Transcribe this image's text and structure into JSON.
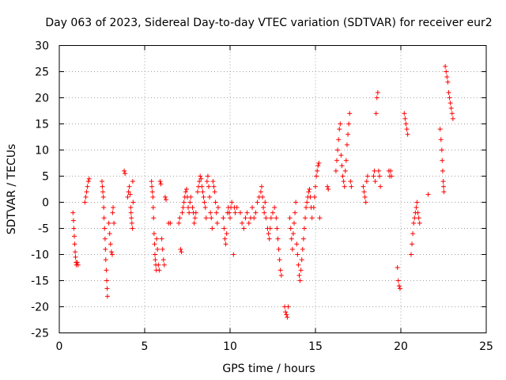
{
  "chart_data": {
    "type": "scatter",
    "title": "Day 063 of 2023, Sidereal Day-to-day VTEC variation (SDTVAR) for receiver eur2",
    "xlabel": "GPS time / hours",
    "ylabel": "SDTVAR / TECUs",
    "xlim": [
      0,
      25
    ],
    "ylim": [
      -25,
      30
    ],
    "x_ticks": [
      0,
      5,
      10,
      15,
      20,
      25
    ],
    "y_ticks": [
      -25,
      -20,
      -15,
      -10,
      -5,
      0,
      5,
      10,
      15,
      20,
      25,
      30
    ],
    "x_tick_labels": [
      "0",
      "5",
      "10",
      "15",
      "20",
      "25"
    ],
    "y_tick_labels": [
      "-25",
      "-20",
      "-15",
      "-10",
      "-5",
      "0",
      "5",
      "10",
      "15",
      "20",
      "25",
      "30"
    ],
    "grid": true,
    "marker": "+",
    "series_color": "#ff0000",
    "series": [
      {
        "name": "eur2",
        "points": [
          [
            0.8,
            -2
          ],
          [
            0.83,
            -3.5
          ],
          [
            0.85,
            -5
          ],
          [
            0.88,
            -6.5
          ],
          [
            0.9,
            -8
          ],
          [
            0.93,
            -9.5
          ],
          [
            0.95,
            -10.5
          ],
          [
            0.98,
            -11.5
          ],
          [
            1.0,
            -12
          ],
          [
            1.05,
            -11.5
          ],
          [
            1.1,
            -12
          ],
          [
            1.5,
            0
          ],
          [
            1.55,
            1
          ],
          [
            1.6,
            2
          ],
          [
            1.65,
            3
          ],
          [
            1.7,
            4
          ],
          [
            1.75,
            4.5
          ],
          [
            2.5,
            4
          ],
          [
            2.52,
            3
          ],
          [
            2.55,
            2
          ],
          [
            2.58,
            1
          ],
          [
            2.6,
            -1
          ],
          [
            2.62,
            -3
          ],
          [
            2.65,
            -5
          ],
          [
            2.68,
            -7
          ],
          [
            2.7,
            -9
          ],
          [
            2.72,
            -11
          ],
          [
            2.75,
            -13
          ],
          [
            2.78,
            -15
          ],
          [
            2.8,
            -16.5
          ],
          [
            2.82,
            -18
          ],
          [
            2.9,
            -4
          ],
          [
            2.95,
            -6
          ],
          [
            3.0,
            -8
          ],
          [
            3.05,
            -9.5
          ],
          [
            3.1,
            -10
          ],
          [
            3.12,
            -2
          ],
          [
            3.15,
            -1
          ],
          [
            3.2,
            -4
          ],
          [
            3.8,
            6
          ],
          [
            3.85,
            5.5
          ],
          [
            4.0,
            1
          ],
          [
            4.05,
            2
          ],
          [
            4.1,
            3
          ],
          [
            4.15,
            1.5
          ],
          [
            4.18,
            -1
          ],
          [
            4.2,
            -2
          ],
          [
            4.22,
            -3
          ],
          [
            4.25,
            -4
          ],
          [
            4.28,
            -5
          ],
          [
            4.3,
            4
          ],
          [
            4.32,
            0
          ],
          [
            5.4,
            4
          ],
          [
            5.42,
            3
          ],
          [
            5.45,
            2
          ],
          [
            5.48,
            1
          ],
          [
            5.5,
            -1
          ],
          [
            5.52,
            -3
          ],
          [
            5.55,
            -6
          ],
          [
            5.58,
            -8
          ],
          [
            5.6,
            -10
          ],
          [
            5.62,
            -11
          ],
          [
            5.65,
            -12
          ],
          [
            5.68,
            -13
          ],
          [
            5.7,
            -7
          ],
          [
            5.75,
            -9
          ],
          [
            5.8,
            -12
          ],
          [
            5.85,
            -13
          ],
          [
            5.9,
            4
          ],
          [
            5.95,
            3.5
          ],
          [
            6.0,
            -7
          ],
          [
            6.05,
            -9
          ],
          [
            6.1,
            -11
          ],
          [
            6.15,
            -12
          ],
          [
            6.2,
            1
          ],
          [
            6.25,
            0.5
          ],
          [
            6.4,
            -4
          ],
          [
            6.5,
            -4
          ],
          [
            7.0,
            -4
          ],
          [
            7.05,
            -3
          ],
          [
            7.1,
            -9
          ],
          [
            7.15,
            -9.5
          ],
          [
            7.2,
            -2
          ],
          [
            7.25,
            -1
          ],
          [
            7.3,
            0
          ],
          [
            7.35,
            1
          ],
          [
            7.4,
            2
          ],
          [
            7.45,
            2.5
          ],
          [
            7.5,
            1
          ],
          [
            7.55,
            -1
          ],
          [
            7.6,
            -2
          ],
          [
            7.65,
            0
          ],
          [
            7.7,
            1
          ],
          [
            7.8,
            -1
          ],
          [
            7.85,
            -2
          ],
          [
            7.9,
            -4
          ],
          [
            7.95,
            -3
          ],
          [
            8.0,
            -2
          ],
          [
            8.1,
            2
          ],
          [
            8.15,
            3
          ],
          [
            8.2,
            4
          ],
          [
            8.25,
            5
          ],
          [
            8.3,
            4.5
          ],
          [
            8.35,
            3
          ],
          [
            8.4,
            2
          ],
          [
            8.45,
            1
          ],
          [
            8.5,
            0
          ],
          [
            8.55,
            -1
          ],
          [
            8.6,
            -3
          ],
          [
            8.65,
            4
          ],
          [
            8.7,
            5
          ],
          [
            8.75,
            3
          ],
          [
            8.8,
            1
          ],
          [
            8.85,
            -2
          ],
          [
            8.9,
            -3
          ],
          [
            8.95,
            -5
          ],
          [
            9.0,
            4
          ],
          [
            9.05,
            3
          ],
          [
            9.1,
            2
          ],
          [
            9.15,
            0
          ],
          [
            9.2,
            -2
          ],
          [
            9.25,
            -4
          ],
          [
            9.3,
            -1
          ],
          [
            9.6,
            -3
          ],
          [
            9.65,
            -5
          ],
          [
            9.7,
            -7
          ],
          [
            9.75,
            -8
          ],
          [
            9.8,
            -6
          ],
          [
            9.85,
            -2
          ],
          [
            9.9,
            -1
          ],
          [
            9.95,
            -2
          ],
          [
            10.0,
            -3
          ],
          [
            10.05,
            -1
          ],
          [
            10.1,
            0
          ],
          [
            10.2,
            -10
          ],
          [
            10.25,
            -1
          ],
          [
            10.3,
            -2
          ],
          [
            10.4,
            -1
          ],
          [
            10.6,
            -2
          ],
          [
            10.7,
            -4
          ],
          [
            10.8,
            -5
          ],
          [
            10.9,
            -3
          ],
          [
            11.0,
            -2
          ],
          [
            11.1,
            -4
          ],
          [
            11.2,
            -3
          ],
          [
            11.3,
            -1
          ],
          [
            11.4,
            -3
          ],
          [
            11.5,
            -2
          ],
          [
            11.6,
            0
          ],
          [
            11.7,
            1
          ],
          [
            11.8,
            2
          ],
          [
            11.85,
            3
          ],
          [
            11.9,
            1
          ],
          [
            11.95,
            -1
          ],
          [
            12.0,
            -2
          ],
          [
            12.05,
            0
          ],
          [
            12.1,
            -3
          ],
          [
            12.2,
            -5
          ],
          [
            12.25,
            -6
          ],
          [
            12.3,
            -7
          ],
          [
            12.35,
            -5
          ],
          [
            12.4,
            -3
          ],
          [
            12.5,
            -2
          ],
          [
            12.6,
            -1
          ],
          [
            12.7,
            -3
          ],
          [
            12.75,
            -5
          ],
          [
            12.8,
            -7
          ],
          [
            12.85,
            -9
          ],
          [
            12.9,
            -11
          ],
          [
            12.95,
            -13
          ],
          [
            13.0,
            -14
          ],
          [
            13.2,
            -20
          ],
          [
            13.25,
            -21
          ],
          [
            13.3,
            -21.5
          ],
          [
            13.35,
            -22
          ],
          [
            13.4,
            -20
          ],
          [
            13.5,
            -3
          ],
          [
            13.55,
            -5
          ],
          [
            13.6,
            -7
          ],
          [
            13.65,
            -9
          ],
          [
            13.7,
            -6
          ],
          [
            13.75,
            -4
          ],
          [
            13.8,
            -2
          ],
          [
            13.85,
            0
          ],
          [
            13.9,
            -8
          ],
          [
            13.95,
            -10
          ],
          [
            14.0,
            -12
          ],
          [
            14.05,
            -14
          ],
          [
            14.1,
            -15
          ],
          [
            14.15,
            -13
          ],
          [
            14.2,
            -11
          ],
          [
            14.25,
            -9
          ],
          [
            14.3,
            -7
          ],
          [
            14.35,
            -5
          ],
          [
            14.4,
            -3
          ],
          [
            14.45,
            -1
          ],
          [
            14.5,
            0
          ],
          [
            14.55,
            1
          ],
          [
            14.6,
            2
          ],
          [
            14.65,
            2.5
          ],
          [
            14.7,
            1
          ],
          [
            14.75,
            -1
          ],
          [
            14.8,
            -3
          ],
          [
            14.9,
            -1
          ],
          [
            14.95,
            1
          ],
          [
            15.0,
            3
          ],
          [
            15.05,
            5
          ],
          [
            15.1,
            6
          ],
          [
            15.15,
            7
          ],
          [
            15.2,
            7.5
          ],
          [
            15.25,
            -3
          ],
          [
            15.7,
            3
          ],
          [
            15.75,
            2.5
          ],
          [
            16.2,
            6
          ],
          [
            16.25,
            8
          ],
          [
            16.3,
            10
          ],
          [
            16.35,
            12
          ],
          [
            16.4,
            14
          ],
          [
            16.45,
            15
          ],
          [
            16.5,
            9
          ],
          [
            16.55,
            7
          ],
          [
            16.6,
            5
          ],
          [
            16.65,
            4
          ],
          [
            16.7,
            3
          ],
          [
            16.75,
            6
          ],
          [
            16.8,
            8
          ],
          [
            16.85,
            11
          ],
          [
            16.9,
            13
          ],
          [
            16.95,
            15
          ],
          [
            17.0,
            17
          ],
          [
            17.05,
            4
          ],
          [
            17.1,
            3
          ],
          [
            17.8,
            3
          ],
          [
            17.85,
            2
          ],
          [
            17.9,
            1
          ],
          [
            17.95,
            0
          ],
          [
            18.0,
            4
          ],
          [
            18.05,
            5
          ],
          [
            18.4,
            5
          ],
          [
            18.45,
            6
          ],
          [
            18.5,
            4
          ],
          [
            18.55,
            17
          ],
          [
            18.6,
            20
          ],
          [
            18.65,
            21
          ],
          [
            18.7,
            6
          ],
          [
            18.75,
            5
          ],
          [
            18.8,
            3
          ],
          [
            19.3,
            6
          ],
          [
            19.35,
            5
          ],
          [
            19.4,
            6
          ],
          [
            19.45,
            5
          ],
          [
            19.8,
            -12.5
          ],
          [
            19.85,
            -15
          ],
          [
            19.9,
            -16
          ],
          [
            19.95,
            -16.5
          ],
          [
            20.2,
            17
          ],
          [
            20.25,
            16
          ],
          [
            20.3,
            15
          ],
          [
            20.35,
            14
          ],
          [
            20.4,
            13
          ],
          [
            20.6,
            -10
          ],
          [
            20.65,
            -8
          ],
          [
            20.7,
            -6
          ],
          [
            20.75,
            -4
          ],
          [
            20.8,
            -3
          ],
          [
            20.85,
            -2
          ],
          [
            20.9,
            -1
          ],
          [
            20.95,
            0
          ],
          [
            21.0,
            -2
          ],
          [
            21.05,
            -3
          ],
          [
            21.1,
            -4
          ],
          [
            21.6,
            1.5
          ],
          [
            22.3,
            14
          ],
          [
            22.35,
            12
          ],
          [
            22.4,
            10
          ],
          [
            22.42,
            8
          ],
          [
            22.45,
            6
          ],
          [
            22.48,
            4
          ],
          [
            22.5,
            3
          ],
          [
            22.52,
            2
          ],
          [
            22.6,
            26
          ],
          [
            22.65,
            25
          ],
          [
            22.7,
            24
          ],
          [
            22.75,
            23
          ],
          [
            22.8,
            21
          ],
          [
            22.85,
            20
          ],
          [
            22.9,
            19
          ],
          [
            22.95,
            18
          ],
          [
            23.0,
            17
          ],
          [
            23.05,
            16
          ]
        ]
      }
    ]
  }
}
